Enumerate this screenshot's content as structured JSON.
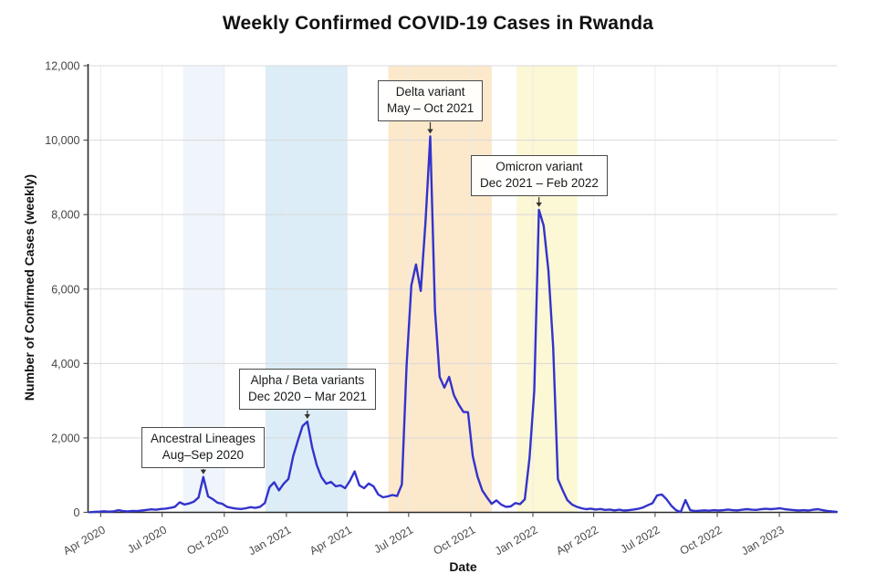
{
  "title": "Weekly Confirmed COVID-19 Cases in Rwanda",
  "chart_data": {
    "type": "line",
    "title": "Weekly Confirmed COVID-19 Cases in Rwanda",
    "xlabel": "Date",
    "ylabel": "Number of Confirmed Cases (weekly)",
    "ylim": [
      0,
      12000
    ],
    "grid": true,
    "legend": "none",
    "line_color": "#3333cc",
    "series_name": "Weekly confirmed COVID-19 cases",
    "x_ticks": [
      {
        "label": "Apr 2020",
        "date": "2020-04-01"
      },
      {
        "label": "Jul 2020",
        "date": "2020-07-01"
      },
      {
        "label": "Oct 2020",
        "date": "2020-10-01"
      },
      {
        "label": "Jan 2021",
        "date": "2021-01-01"
      },
      {
        "label": "Apr 2021",
        "date": "2021-04-01"
      },
      {
        "label": "Jul 2021",
        "date": "2021-07-01"
      },
      {
        "label": "Oct 2021",
        "date": "2021-10-01"
      },
      {
        "label": "Jan 2022",
        "date": "2022-01-01"
      },
      {
        "label": "Apr 2022",
        "date": "2022-04-01"
      },
      {
        "label": "Jul 2022",
        "date": "2022-07-01"
      },
      {
        "label": "Oct 2022",
        "date": "2022-10-01"
      },
      {
        "label": "Jan 2023",
        "date": "2023-01-01"
      }
    ],
    "y_ticks": [
      {
        "label": "0",
        "value": 0
      },
      {
        "label": "2,000",
        "value": 2000
      },
      {
        "label": "4,000",
        "value": 4000
      },
      {
        "label": "6,000",
        "value": 6000
      },
      {
        "label": "8,000",
        "value": 8000
      },
      {
        "label": "10,000",
        "value": 10000
      },
      {
        "label": "12,000",
        "value": 12000
      }
    ],
    "bands": [
      {
        "name": "ancestral",
        "start": "2020-08-01",
        "end": "2020-10-01",
        "color": "#eff5fa"
      },
      {
        "name": "alpha-beta",
        "start": "2020-12-01",
        "end": "2021-04-01",
        "color": "#dcedf7"
      },
      {
        "name": "delta",
        "start": "2021-06-01",
        "end": "2021-11-01",
        "color": "#fce8cb"
      },
      {
        "name": "omicron",
        "start": "2021-12-08",
        "end": "2022-03-08",
        "color": "#fcf7d4"
      }
    ],
    "annotations": [
      {
        "title": "Ancestral Lineages",
        "dates": "Aug–Sep 2020",
        "anchor_date": "2020-08-31",
        "anchor_value": 950
      },
      {
        "title": "Alpha / Beta variants",
        "dates": "Dec 2020 – Mar 2021",
        "anchor_date": "2021-02-01",
        "anchor_value": 2440
      },
      {
        "title": "Delta variant",
        "dates": "May – Oct 2021",
        "anchor_date": "2021-08-02",
        "anchor_value": 10100
      },
      {
        "title": "Omicron variant",
        "dates": "Dec 2021 – Feb 2022",
        "anchor_date": "2022-01-10",
        "anchor_value": 8130
      }
    ],
    "dates": [
      "2020-03-16",
      "2020-03-23",
      "2020-03-30",
      "2020-04-06",
      "2020-04-13",
      "2020-04-20",
      "2020-04-27",
      "2020-05-04",
      "2020-05-11",
      "2020-05-18",
      "2020-05-25",
      "2020-06-01",
      "2020-06-08",
      "2020-06-15",
      "2020-06-22",
      "2020-06-29",
      "2020-07-06",
      "2020-07-13",
      "2020-07-20",
      "2020-07-27",
      "2020-08-03",
      "2020-08-10",
      "2020-08-17",
      "2020-08-24",
      "2020-08-31",
      "2020-09-07",
      "2020-09-14",
      "2020-09-21",
      "2020-09-28",
      "2020-10-05",
      "2020-10-12",
      "2020-10-19",
      "2020-10-26",
      "2020-11-02",
      "2020-11-09",
      "2020-11-16",
      "2020-11-23",
      "2020-11-30",
      "2020-12-07",
      "2020-12-14",
      "2020-12-21",
      "2020-12-28",
      "2021-01-04",
      "2021-01-11",
      "2021-01-18",
      "2021-01-25",
      "2021-02-01",
      "2021-02-08",
      "2021-02-15",
      "2021-02-22",
      "2021-03-01",
      "2021-03-08",
      "2021-03-15",
      "2021-03-22",
      "2021-03-29",
      "2021-04-05",
      "2021-04-12",
      "2021-04-19",
      "2021-04-26",
      "2021-05-03",
      "2021-05-10",
      "2021-05-17",
      "2021-05-24",
      "2021-05-31",
      "2021-06-07",
      "2021-06-14",
      "2021-06-21",
      "2021-06-28",
      "2021-07-05",
      "2021-07-12",
      "2021-07-19",
      "2021-07-26",
      "2021-08-02",
      "2021-08-09",
      "2021-08-16",
      "2021-08-23",
      "2021-08-30",
      "2021-09-06",
      "2021-09-13",
      "2021-09-20",
      "2021-09-27",
      "2021-10-04",
      "2021-10-11",
      "2021-10-18",
      "2021-10-25",
      "2021-11-01",
      "2021-11-08",
      "2021-11-15",
      "2021-11-22",
      "2021-11-29",
      "2021-12-06",
      "2021-12-13",
      "2021-12-20",
      "2021-12-27",
      "2022-01-03",
      "2022-01-10",
      "2022-01-17",
      "2022-01-24",
      "2022-01-31",
      "2022-02-07",
      "2022-02-14",
      "2022-02-21",
      "2022-02-28",
      "2022-03-07",
      "2022-03-14",
      "2022-03-21",
      "2022-03-28",
      "2022-04-04",
      "2022-04-11",
      "2022-04-18",
      "2022-04-25",
      "2022-05-02",
      "2022-05-09",
      "2022-05-16",
      "2022-05-23",
      "2022-05-30",
      "2022-06-06",
      "2022-06-13",
      "2022-06-20",
      "2022-06-27",
      "2022-07-04",
      "2022-07-11",
      "2022-07-18",
      "2022-07-25",
      "2022-08-01",
      "2022-08-08",
      "2022-08-15",
      "2022-08-22",
      "2022-08-29",
      "2022-09-05",
      "2022-09-12",
      "2022-09-19",
      "2022-09-26",
      "2022-10-03",
      "2022-10-10",
      "2022-10-17",
      "2022-10-24",
      "2022-10-31",
      "2022-11-07",
      "2022-11-14",
      "2022-11-21",
      "2022-11-28",
      "2022-12-05",
      "2022-12-12",
      "2022-12-19",
      "2022-12-26",
      "2023-01-02",
      "2023-01-09",
      "2023-01-16",
      "2023-01-23",
      "2023-01-30",
      "2023-02-06",
      "2023-02-13",
      "2023-02-20",
      "2023-02-27",
      "2023-03-06",
      "2023-03-13",
      "2023-03-20",
      "2023-03-27"
    ],
    "values": [
      5,
      15,
      20,
      30,
      20,
      25,
      60,
      35,
      25,
      40,
      35,
      50,
      65,
      80,
      70,
      90,
      100,
      120,
      150,
      270,
      210,
      240,
      290,
      400,
      950,
      430,
      355,
      260,
      230,
      150,
      120,
      100,
      90,
      110,
      140,
      120,
      150,
      250,
      680,
      810,
      590,
      770,
      900,
      1510,
      1925,
      2320,
      2440,
      1755,
      1265,
      945,
      770,
      820,
      700,
      725,
      650,
      845,
      1100,
      725,
      650,
      775,
      700,
      480,
      405,
      430,
      465,
      440,
      750,
      3960,
      6100,
      6660,
      5950,
      7800,
      10100,
      5430,
      3640,
      3350,
      3640,
      3150,
      2900,
      2700,
      2690,
      1510,
      960,
      590,
      400,
      230,
      320,
      210,
      150,
      160,
      250,
      220,
      350,
      1460,
      3270,
      8130,
      7700,
      6500,
      4450,
      895,
      600,
      330,
      210,
      150,
      110,
      85,
      100,
      75,
      90,
      65,
      75,
      55,
      70,
      50,
      60,
      75,
      95,
      130,
      190,
      245,
      455,
      480,
      350,
      180,
      60,
      10,
      330,
      60,
      35,
      45,
      55,
      45,
      60,
      50,
      60,
      75,
      60,
      55,
      70,
      85,
      70,
      65,
      85,
      95,
      85,
      95,
      110,
      85,
      70,
      60,
      50,
      60,
      50,
      70,
      85,
      60,
      40,
      25,
      15
    ]
  }
}
